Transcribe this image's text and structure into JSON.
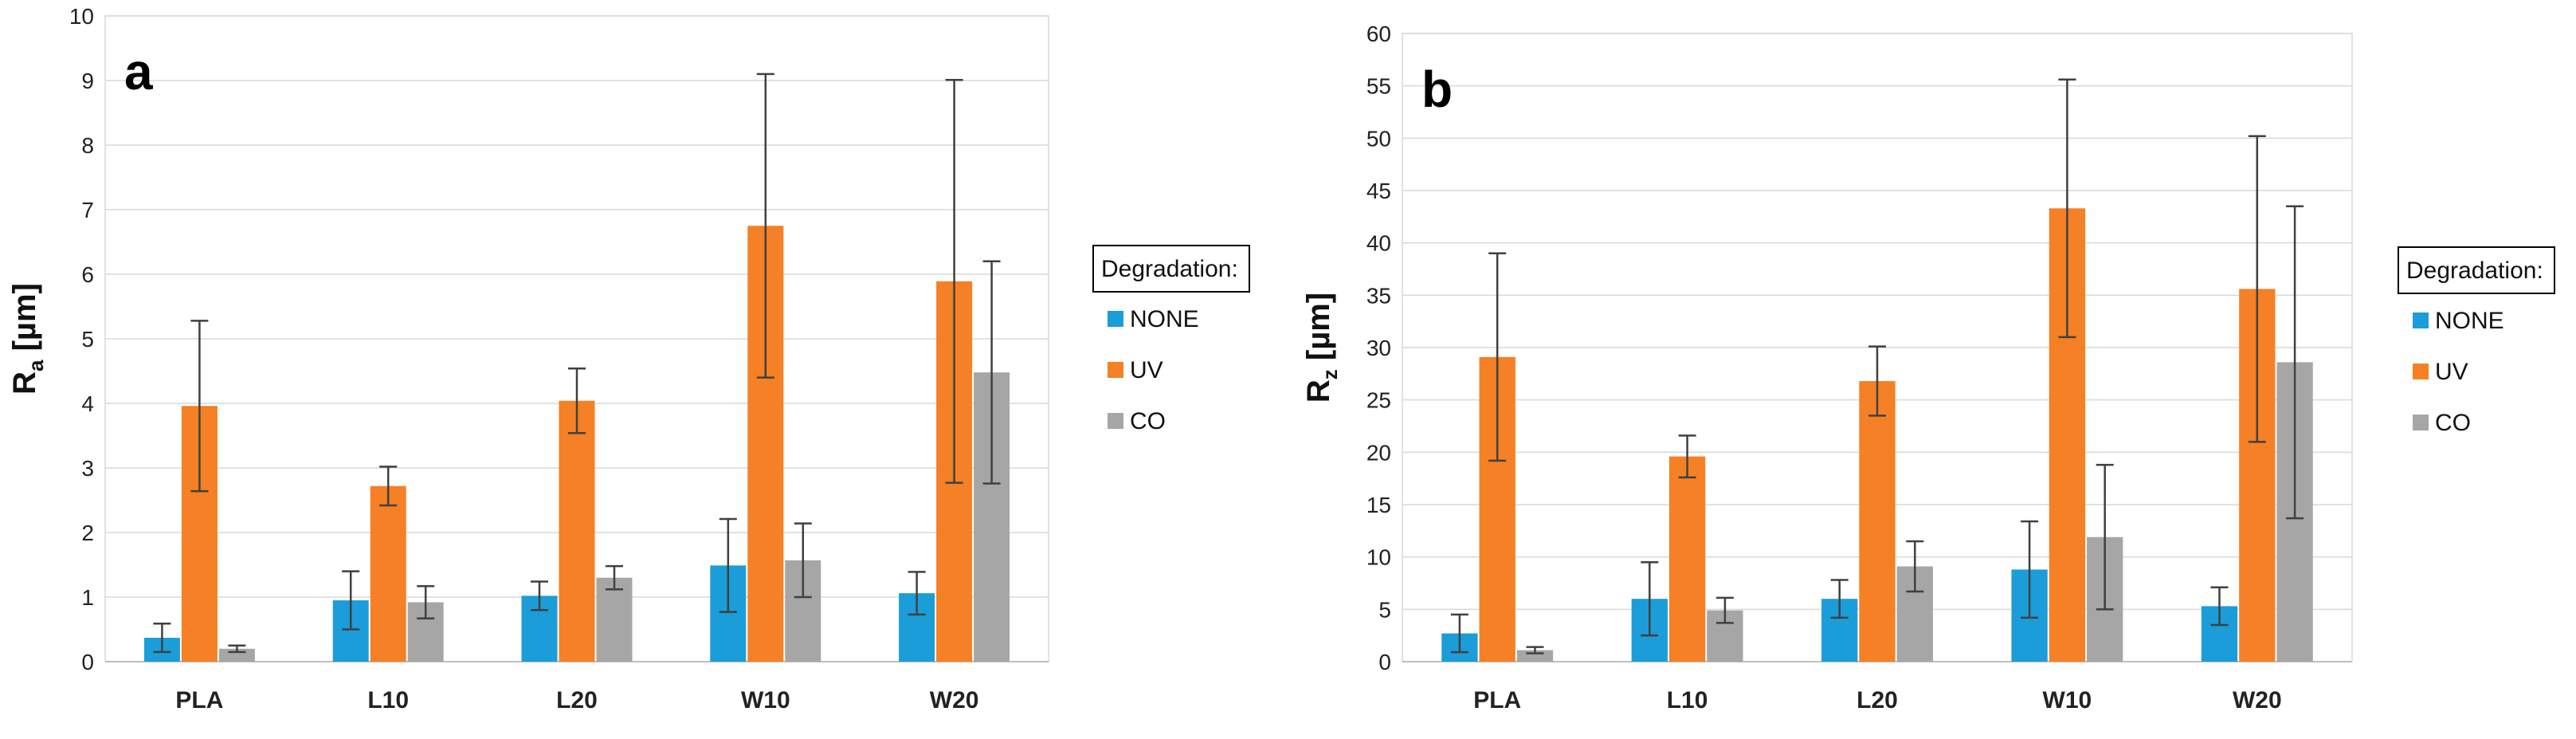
{
  "chart_data": [
    {
      "type": "bar",
      "panel_label": "a",
      "ylabel_main": "R",
      "ylabel_sub": "a",
      "ylabel_unit": " [µm]",
      "ylim": [
        0,
        10
      ],
      "ytick_step": 1,
      "grid": true,
      "categories": [
        "PLA",
        "L10",
        "L20",
        "W10",
        "W20"
      ],
      "legend_title": "Degradation:",
      "legend_position": "right",
      "series": [
        {
          "name": "NONE",
          "color": "#1B9DD9",
          "values": [
            0.37,
            0.95,
            1.02,
            1.49,
            1.06
          ],
          "err": [
            0.22,
            0.45,
            0.22,
            0.72,
            0.33
          ]
        },
        {
          "name": "UV",
          "color": "#F58025",
          "values": [
            3.96,
            2.72,
            4.04,
            6.75,
            5.89
          ],
          "err": [
            1.32,
            0.3,
            0.5,
            2.35,
            3.12
          ]
        },
        {
          "name": "CO",
          "color": "#A6A6A6",
          "values": [
            0.2,
            0.92,
            1.3,
            1.57,
            4.48
          ],
          "err": [
            0.05,
            0.25,
            0.18,
            0.57,
            1.72
          ]
        }
      ]
    },
    {
      "type": "bar",
      "panel_label": "b",
      "ylabel_main": "R",
      "ylabel_sub": "z",
      "ylabel_unit": " [µm]",
      "ylim": [
        0,
        60
      ],
      "ytick_step": 5,
      "grid": true,
      "categories": [
        "PLA",
        "L10",
        "L20",
        "W10",
        "W20"
      ],
      "legend_title": "Degradation:",
      "legend_position": "right",
      "series": [
        {
          "name": "NONE",
          "color": "#1B9DD9",
          "values": [
            2.7,
            6.0,
            6.0,
            8.8,
            5.3
          ],
          "err": [
            1.8,
            3.5,
            1.8,
            4.6,
            1.8
          ]
        },
        {
          "name": "UV",
          "color": "#F58025",
          "values": [
            29.1,
            19.6,
            26.8,
            43.3,
            35.6
          ],
          "err": [
            9.9,
            2.0,
            3.3,
            12.3,
            14.6
          ]
        },
        {
          "name": "CO",
          "color": "#A6A6A6",
          "values": [
            1.1,
            4.9,
            9.1,
            11.9,
            28.6
          ],
          "err": [
            0.3,
            1.2,
            2.4,
            6.9,
            14.9
          ]
        }
      ]
    }
  ]
}
